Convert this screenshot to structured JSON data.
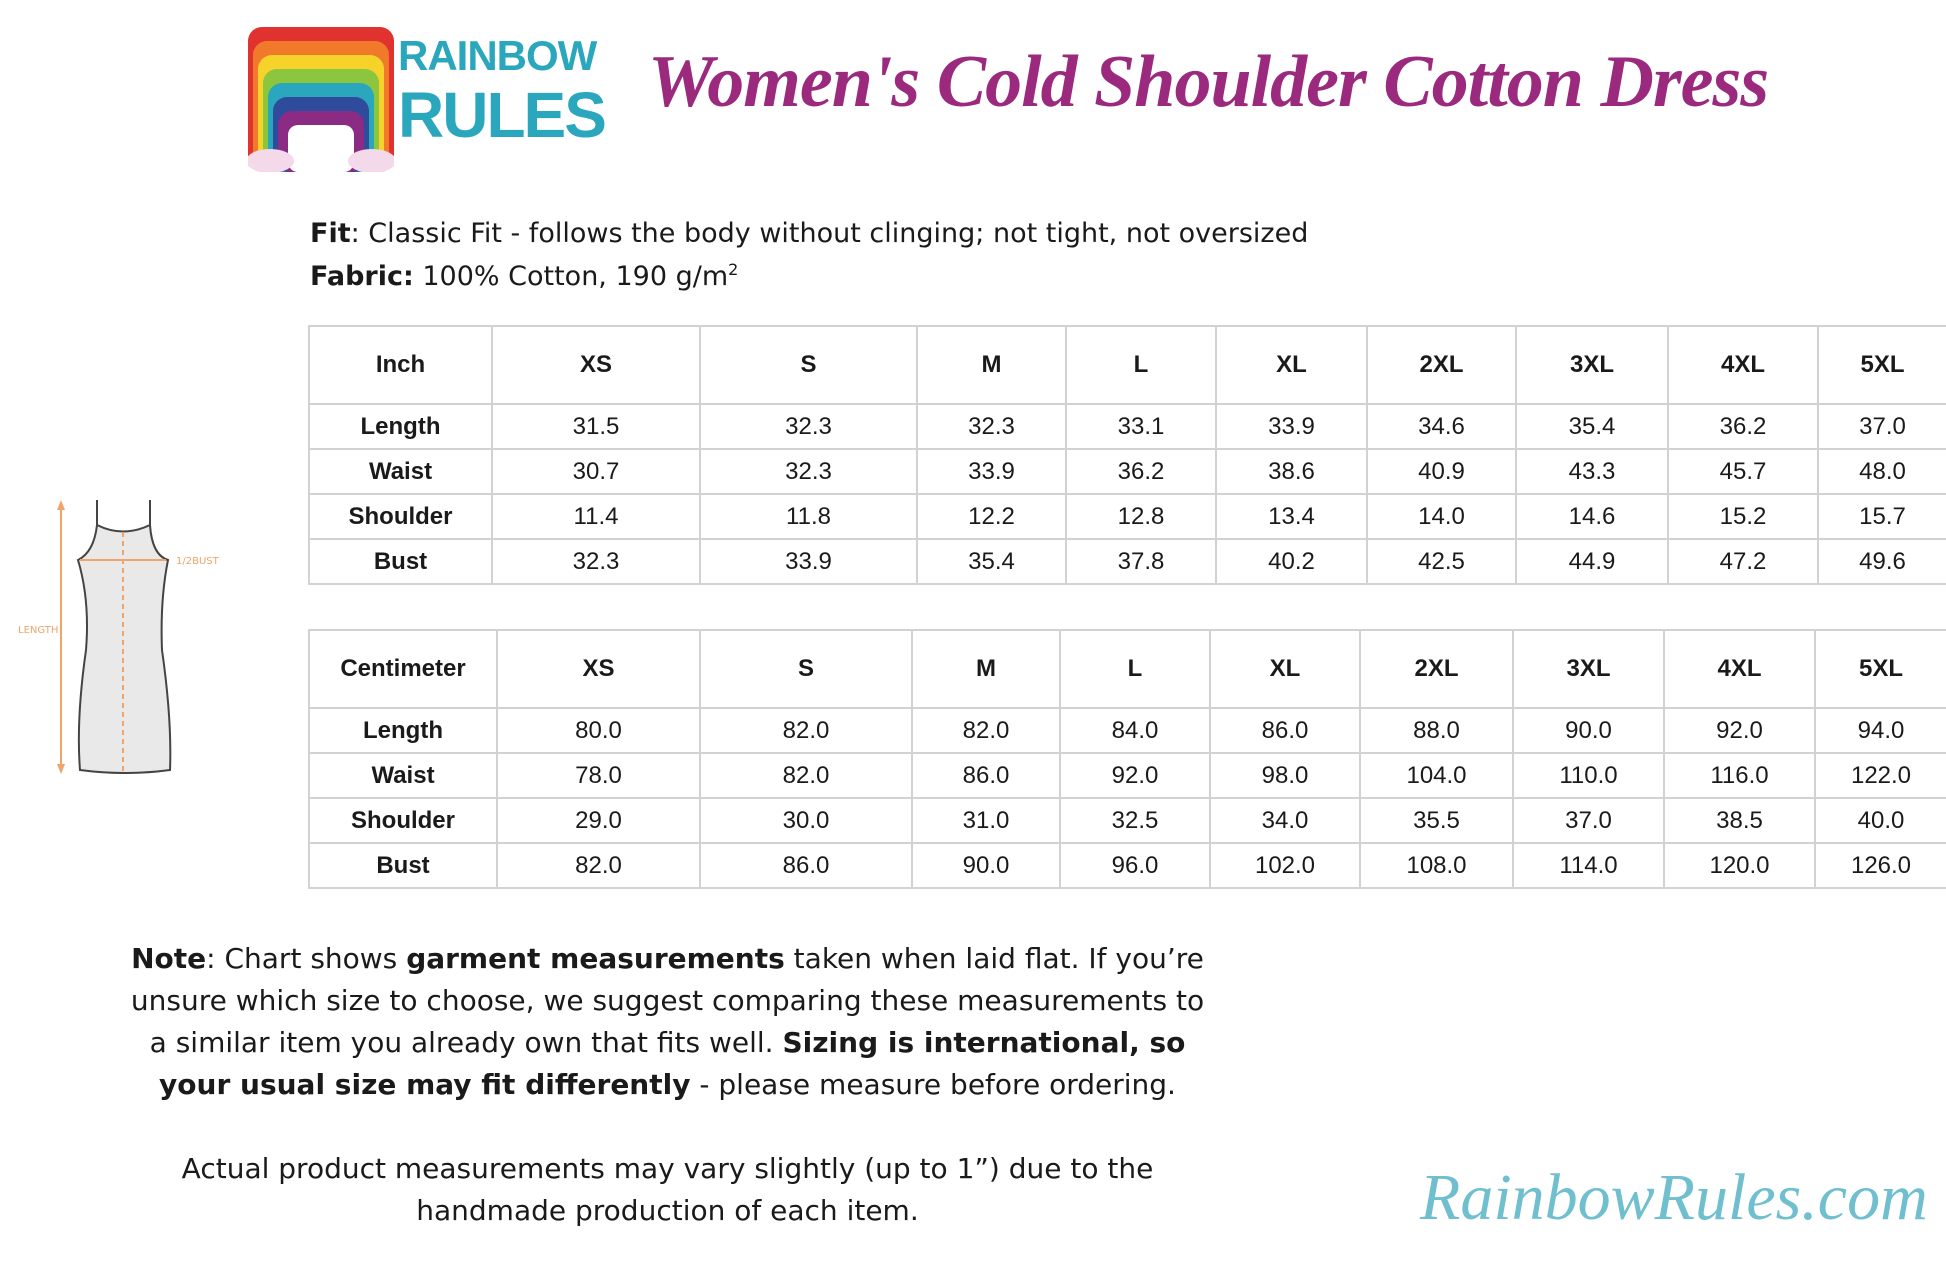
{
  "logo": {
    "line1": "RAINBOW",
    "line2": "RULES",
    "colors": [
      "#e0332f",
      "#f07a2a",
      "#f6d32a",
      "#8cc63f",
      "#2aa7bd",
      "#2f4b9b",
      "#8b2b84"
    ]
  },
  "title": "Women's Cold Shoulder Cotton Dress",
  "fit": {
    "label": "Fit",
    "text": ": Classic Fit - follows the body without clinging; not tight, not oversized"
  },
  "fabric": {
    "label": "Fabric:",
    "text": " 100% Cotton, 190 g/m",
    "sup": "2"
  },
  "diagram": {
    "bust_label": "1/2BUST",
    "length_label": "LENGTH"
  },
  "tables": [
    {
      "unit": "Inch",
      "sizes": [
        "XS",
        "S",
        "M",
        "L",
        "XL",
        "2XL",
        "3XL",
        "4XL",
        "5XL"
      ],
      "rows": [
        {
          "label": "Length",
          "values": [
            "31.5",
            "32.3",
            "32.3",
            "33.1",
            "33.9",
            "34.6",
            "35.4",
            "36.2",
            "37.0"
          ]
        },
        {
          "label": "Waist",
          "values": [
            "30.7",
            "32.3",
            "33.9",
            "36.2",
            "38.6",
            "40.9",
            "43.3",
            "45.7",
            "48.0"
          ]
        },
        {
          "label": "Shoulder",
          "values": [
            "11.4",
            "11.8",
            "12.2",
            "12.8",
            "13.4",
            "14.0",
            "14.6",
            "15.2",
            "15.7"
          ]
        },
        {
          "label": "Bust",
          "values": [
            "32.3",
            "33.9",
            "35.4",
            "37.8",
            "40.2",
            "42.5",
            "44.9",
            "47.2",
            "49.6"
          ]
        }
      ]
    },
    {
      "unit": "Centimeter",
      "sizes": [
        "XS",
        "S",
        "M",
        "L",
        "XL",
        "2XL",
        "3XL",
        "4XL",
        "5XL"
      ],
      "rows": [
        {
          "label": "Length",
          "values": [
            "80.0",
            "82.0",
            "82.0",
            "84.0",
            "86.0",
            "88.0",
            "90.0",
            "92.0",
            "94.0"
          ]
        },
        {
          "label": "Waist",
          "values": [
            "78.0",
            "82.0",
            "86.0",
            "92.0",
            "98.0",
            "104.0",
            "110.0",
            "116.0",
            "122.0"
          ]
        },
        {
          "label": "Shoulder",
          "values": [
            "29.0",
            "30.0",
            "31.0",
            "32.5",
            "34.0",
            "35.5",
            "37.0",
            "38.5",
            "40.0"
          ]
        },
        {
          "label": "Bust",
          "values": [
            "82.0",
            "86.0",
            "90.0",
            "96.0",
            "102.0",
            "108.0",
            "114.0",
            "120.0",
            "126.0"
          ]
        }
      ]
    }
  ],
  "note": {
    "label": "Note",
    "t1": ": Chart shows ",
    "b1": "garment measurements",
    "t2": " taken when laid flat. If you’re unsure which size to choose, we suggest comparing these measurements to a similar item you already own that fits well. ",
    "b2": "Sizing is international, so your usual size may fit differently",
    "t3": " - please measure before ordering."
  },
  "actual": "Actual product measurements may vary slightly (up to 1”) due to the handmade production of each item.",
  "site": "RainbowRules.com",
  "colors": {
    "title": "#9b2a7e",
    "brand_teal": "#2aa7bd",
    "site_teal": "#6fbfcf",
    "diagram_orange": "#f0a46a"
  }
}
